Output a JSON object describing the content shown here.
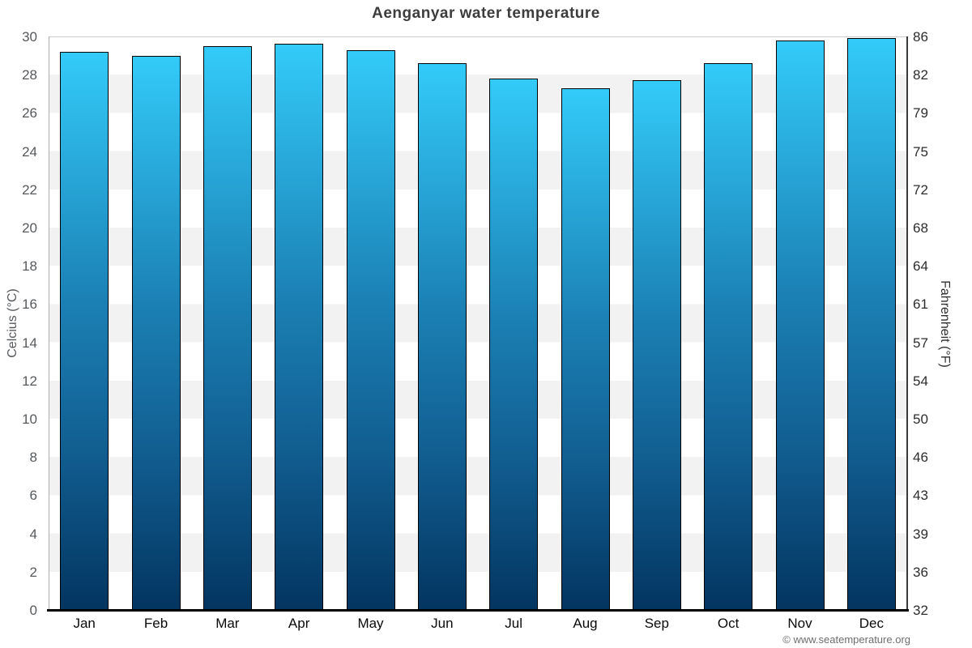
{
  "page": {
    "copyright": "© www.seatemperature.org"
  },
  "chart_data": {
    "type": "bar",
    "title": "Aenganyar water temperature",
    "categories": [
      "Jan",
      "Feb",
      "Mar",
      "Apr",
      "May",
      "Jun",
      "Jul",
      "Aug",
      "Sep",
      "Oct",
      "Nov",
      "Dec"
    ],
    "series": [
      {
        "name": "Water temperature",
        "unit": "°C",
        "values": [
          29.2,
          29.0,
          29.5,
          29.6,
          29.3,
          28.6,
          27.8,
          27.3,
          27.7,
          28.6,
          29.8,
          29.9
        ]
      }
    ],
    "ylabel_left": "Celcius (°C)",
    "ylabel_right": "Fahrenheit (°F)",
    "ylim": [
      0,
      30
    ],
    "ytick_step_celsius": 2,
    "yticks_left": [
      "30",
      "28",
      "26",
      "24",
      "22",
      "20",
      "18",
      "16",
      "14",
      "12",
      "10",
      "8",
      "6",
      "4",
      "2",
      "0"
    ],
    "yticks_right": [
      "86",
      "82",
      "79",
      "75",
      "72",
      "68",
      "64",
      "61",
      "57",
      "54",
      "50",
      "46",
      "43",
      "39",
      "36",
      "32"
    ],
    "grid": "alternating horizontal bands, no vertical gridlines",
    "legend_position": "none",
    "colors": {
      "bar_gradient_top": "#33cbf9",
      "bar_gradient_mid": "#1b80b4",
      "bar_gradient_low": "#115d90",
      "bar_gradient_bottom": "#033560",
      "bar_border": "#000000",
      "band_gray": "#f2f2f2",
      "band_white": "#ffffff",
      "title_text": "#3d3d3d",
      "left_axis_text": "#56595c",
      "right_axis_text": "#2d2d2d",
      "baseline": "#000000"
    }
  }
}
